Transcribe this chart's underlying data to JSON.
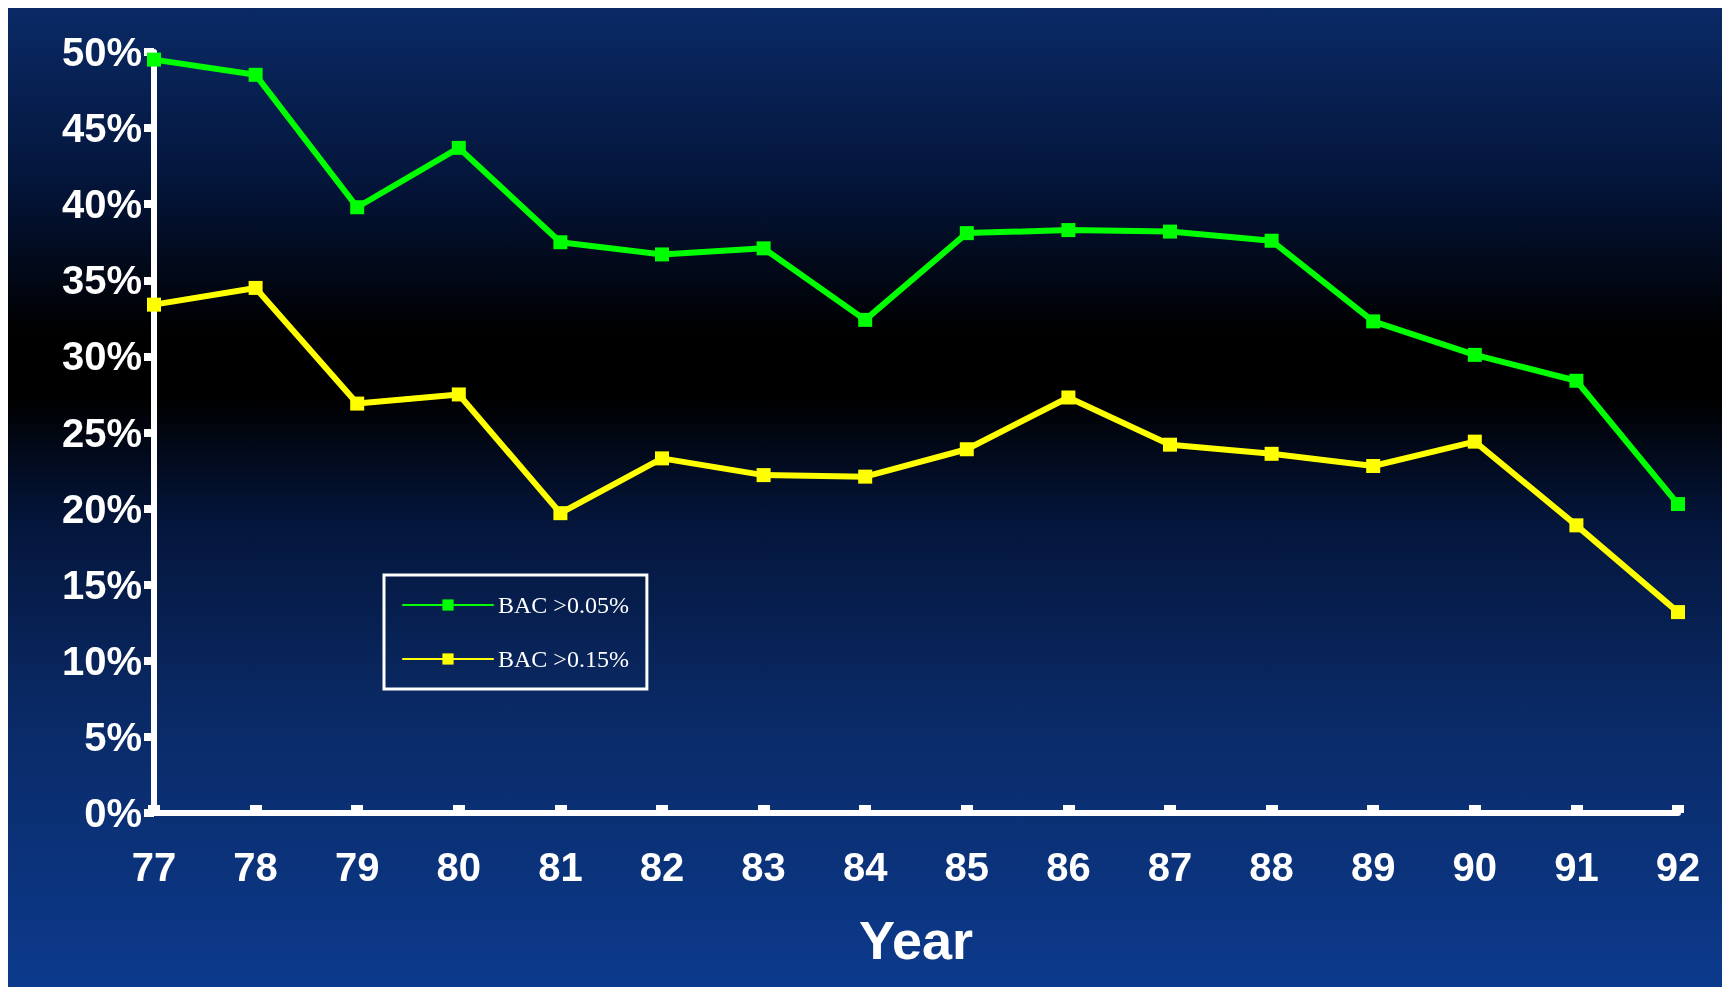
{
  "chart_data": {
    "type": "line",
    "xlabel": "Year",
    "categories": [
      "77",
      "78",
      "79",
      "80",
      "81",
      "82",
      "83",
      "84",
      "85",
      "86",
      "87",
      "88",
      "89",
      "90",
      "91",
      "92"
    ],
    "series": [
      {
        "name": "BAC >0.05%",
        "color": "#00ff00",
        "values": [
          49.5,
          48.5,
          39.8,
          43.7,
          37.5,
          36.7,
          37.1,
          32.4,
          38.1,
          38.3,
          38.2,
          37.6,
          32.3,
          30.1,
          28.4,
          20.3
        ]
      },
      {
        "name": "BAC >0.15%",
        "color": "#ffff00",
        "values": [
          33.4,
          34.5,
          26.9,
          27.5,
          19.7,
          23.3,
          22.2,
          22.1,
          23.9,
          27.3,
          24.2,
          23.6,
          22.8,
          24.4,
          18.9,
          13.2
        ]
      }
    ],
    "ylim": [
      0,
      50
    ],
    "yticks": [
      {
        "value": 0,
        "label": "0%"
      },
      {
        "value": 5,
        "label": "5%"
      },
      {
        "value": 10,
        "label": "10%"
      },
      {
        "value": 15,
        "label": "15%"
      },
      {
        "value": 20,
        "label": "20%"
      },
      {
        "value": 25,
        "label": "25%"
      },
      {
        "value": 30,
        "label": "30%"
      },
      {
        "value": 35,
        "label": "35%"
      },
      {
        "value": 40,
        "label": "40%"
      },
      {
        "value": 45,
        "label": "45%"
      },
      {
        "value": 50,
        "label": "50%"
      }
    ],
    "grid": false,
    "legend": "bottom left",
    "marker": "square",
    "line_style": "solid"
  }
}
